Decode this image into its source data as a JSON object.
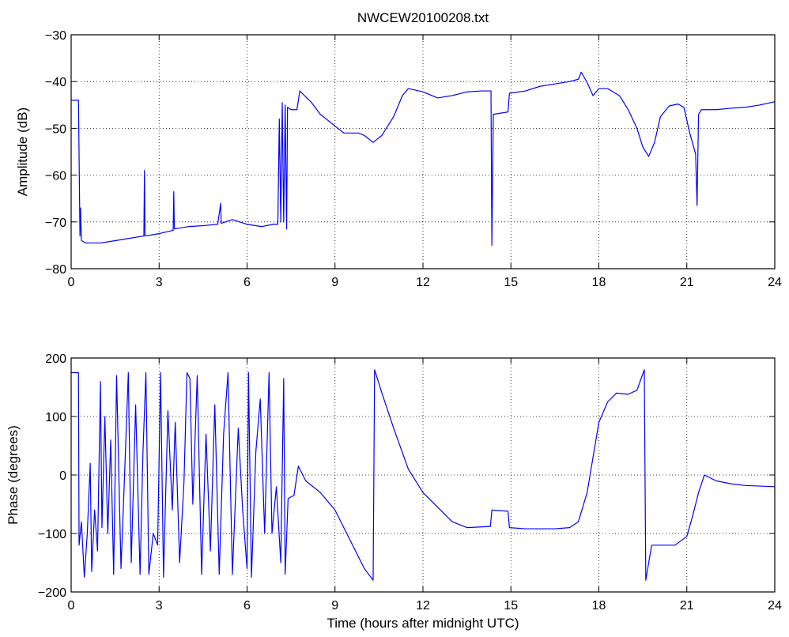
{
  "figure": {
    "title": "NWCEW20100208.txt"
  },
  "chart_data": [
    {
      "type": "line",
      "title": "NWCEW20100208.txt",
      "xlabel": "",
      "ylabel": "Amplitude (dB)",
      "xlim": [
        0,
        24
      ],
      "ylim": [
        -80,
        -30
      ],
      "xticks": [
        0,
        3,
        6,
        9,
        12,
        15,
        18,
        21,
        24
      ],
      "yticks": [
        -80,
        -70,
        -60,
        -50,
        -40,
        -30
      ],
      "grid": true,
      "line_color": "#0000ff",
      "series": [
        {
          "points": [
            [
              0,
              -44
            ],
            [
              0.25,
              -44
            ],
            [
              0.3,
              -73
            ],
            [
              0.32,
              -67
            ],
            [
              0.35,
              -74
            ],
            [
              0.5,
              -74.5
            ],
            [
              1.0,
              -74.5
            ],
            [
              1.5,
              -74
            ],
            [
              2.0,
              -73.5
            ],
            [
              2.48,
              -73
            ],
            [
              2.5,
              -59
            ],
            [
              2.52,
              -73
            ],
            [
              3.0,
              -72.5
            ],
            [
              3.48,
              -71.8
            ],
            [
              3.5,
              -63.5
            ],
            [
              3.52,
              -71.5
            ],
            [
              4.0,
              -71
            ],
            [
              4.5,
              -70.8
            ],
            [
              5.0,
              -70.5
            ],
            [
              5.1,
              -66
            ],
            [
              5.12,
              -70.3
            ],
            [
              5.5,
              -69.5
            ],
            [
              6.0,
              -70.5
            ],
            [
              6.5,
              -71
            ],
            [
              6.9,
              -70.5
            ],
            [
              7.05,
              -70.5
            ],
            [
              7.1,
              -48
            ],
            [
              7.15,
              -70
            ],
            [
              7.2,
              -44.5
            ],
            [
              7.25,
              -70
            ],
            [
              7.3,
              -45
            ],
            [
              7.35,
              -71.5
            ],
            [
              7.38,
              -45.5
            ],
            [
              7.5,
              -46
            ],
            [
              7.7,
              -46
            ],
            [
              7.8,
              -42
            ],
            [
              8.2,
              -44.5
            ],
            [
              8.5,
              -47
            ],
            [
              9.0,
              -49.5
            ],
            [
              9.3,
              -51
            ],
            [
              9.8,
              -51
            ],
            [
              10.0,
              -51.5
            ],
            [
              10.3,
              -53
            ],
            [
              10.6,
              -51.5
            ],
            [
              11.0,
              -47.5
            ],
            [
              11.3,
              -43
            ],
            [
              11.5,
              -41.5
            ],
            [
              12.0,
              -42.2
            ],
            [
              12.5,
              -43.5
            ],
            [
              13.0,
              -43
            ],
            [
              13.5,
              -42.2
            ],
            [
              14.0,
              -42
            ],
            [
              14.32,
              -42
            ],
            [
              14.35,
              -75
            ],
            [
              14.4,
              -47
            ],
            [
              14.9,
              -46.5
            ],
            [
              14.95,
              -42.5
            ],
            [
              15.5,
              -42
            ],
            [
              16.0,
              -41
            ],
            [
              16.5,
              -40.5
            ],
            [
              17.0,
              -40
            ],
            [
              17.3,
              -39.5
            ],
            [
              17.4,
              -38
            ],
            [
              17.6,
              -40.2
            ],
            [
              17.8,
              -43
            ],
            [
              18.0,
              -41.5
            ],
            [
              18.3,
              -41.5
            ],
            [
              18.7,
              -43
            ],
            [
              19.0,
              -46
            ],
            [
              19.3,
              -50
            ],
            [
              19.5,
              -54
            ],
            [
              19.7,
              -56
            ],
            [
              19.9,
              -53
            ],
            [
              20.1,
              -47.5
            ],
            [
              20.4,
              -45.2
            ],
            [
              20.7,
              -44.8
            ],
            [
              20.9,
              -45.5
            ],
            [
              21.1,
              -51
            ],
            [
              21.3,
              -55.5
            ],
            [
              21.35,
              -66.5
            ],
            [
              21.4,
              -47
            ],
            [
              21.5,
              -46
            ],
            [
              22.0,
              -46
            ],
            [
              22.5,
              -45.7
            ],
            [
              23.0,
              -45.5
            ],
            [
              23.5,
              -45
            ],
            [
              24.0,
              -44.3
            ]
          ]
        }
      ]
    },
    {
      "type": "line",
      "title": "",
      "xlabel": "Time (hours after midnight UTC)",
      "ylabel": "Phase (degrees)",
      "xlim": [
        0,
        24
      ],
      "ylim": [
        -200,
        200
      ],
      "xticks": [
        0,
        3,
        6,
        9,
        12,
        15,
        18,
        21,
        24
      ],
      "yticks": [
        -200,
        -100,
        0,
        100,
        200
      ],
      "grid": true,
      "line_color": "#0000ff",
      "series": [
        {
          "points": [
            [
              0,
              175
            ],
            [
              0.25,
              175
            ],
            [
              0.27,
              -120
            ],
            [
              0.35,
              -80
            ],
            [
              0.45,
              -175
            ],
            [
              0.55,
              -100
            ],
            [
              0.65,
              20
            ],
            [
              0.7,
              -165
            ],
            [
              0.8,
              -60
            ],
            [
              0.9,
              -130
            ],
            [
              1.0,
              160
            ],
            [
              1.05,
              -90
            ],
            [
              1.15,
              100
            ],
            [
              1.25,
              -100
            ],
            [
              1.35,
              60
            ],
            [
              1.45,
              -170
            ],
            [
              1.55,
              170
            ],
            [
              1.7,
              -160
            ],
            [
              1.8,
              -30
            ],
            [
              1.95,
              175
            ],
            [
              2.05,
              -150
            ],
            [
              2.2,
              120
            ],
            [
              2.35,
              -170
            ],
            [
              2.45,
              40
            ],
            [
              2.55,
              175
            ],
            [
              2.65,
              -170
            ],
            [
              2.8,
              -100
            ],
            [
              2.95,
              -120
            ],
            [
              3.05,
              175
            ],
            [
              3.15,
              -175
            ],
            [
              3.3,
              110
            ],
            [
              3.45,
              -60
            ],
            [
              3.55,
              90
            ],
            [
              3.7,
              -150
            ],
            [
              3.85,
              -10
            ],
            [
              3.95,
              175
            ],
            [
              4.05,
              165
            ],
            [
              4.15,
              -50
            ],
            [
              4.3,
              170
            ],
            [
              4.45,
              -170
            ],
            [
              4.6,
              70
            ],
            [
              4.75,
              -130
            ],
            [
              4.9,
              120
            ],
            [
              5.05,
              -170
            ],
            [
              5.2,
              70
            ],
            [
              5.35,
              175
            ],
            [
              5.5,
              -170
            ],
            [
              5.7,
              80
            ],
            [
              5.85,
              -60
            ],
            [
              6.0,
              -160
            ],
            [
              6.05,
              175
            ],
            [
              6.15,
              -175
            ],
            [
              6.3,
              40
            ],
            [
              6.45,
              130
            ],
            [
              6.6,
              -100
            ],
            [
              6.75,
              175
            ],
            [
              6.85,
              -100
            ],
            [
              7.0,
              -20
            ],
            [
              7.15,
              -150
            ],
            [
              7.25,
              165
            ],
            [
              7.3,
              -170
            ],
            [
              7.4,
              -40
            ],
            [
              7.6,
              -35
            ],
            [
              7.75,
              15
            ],
            [
              8.0,
              -10
            ],
            [
              8.5,
              -30
            ],
            [
              9.0,
              -60
            ],
            [
              9.5,
              -110
            ],
            [
              10.0,
              -160
            ],
            [
              10.3,
              -180
            ],
            [
              10.35,
              180
            ],
            [
              10.6,
              140
            ],
            [
              11.0,
              80
            ],
            [
              11.5,
              10
            ],
            [
              12.0,
              -30
            ],
            [
              12.5,
              -55
            ],
            [
              13.0,
              -80
            ],
            [
              13.5,
              -90
            ],
            [
              14.3,
              -88
            ],
            [
              14.35,
              -60
            ],
            [
              14.9,
              -62
            ],
            [
              14.95,
              -90
            ],
            [
              15.5,
              -92
            ],
            [
              16.0,
              -92
            ],
            [
              16.5,
              -92
            ],
            [
              17.0,
              -90
            ],
            [
              17.3,
              -80
            ],
            [
              17.6,
              -30
            ],
            [
              17.8,
              30
            ],
            [
              18.0,
              90
            ],
            [
              18.3,
              125
            ],
            [
              18.6,
              140
            ],
            [
              19.0,
              138
            ],
            [
              19.3,
              145
            ],
            [
              19.55,
              180
            ],
            [
              19.6,
              -180
            ],
            [
              19.8,
              -120
            ],
            [
              20.2,
              -120
            ],
            [
              20.6,
              -120
            ],
            [
              21.0,
              -105
            ],
            [
              21.2,
              -70
            ],
            [
              21.4,
              -30
            ],
            [
              21.6,
              0
            ],
            [
              22.0,
              -10
            ],
            [
              22.5,
              -15
            ],
            [
              23.0,
              -18
            ],
            [
              24.0,
              -20
            ]
          ]
        }
      ]
    }
  ]
}
